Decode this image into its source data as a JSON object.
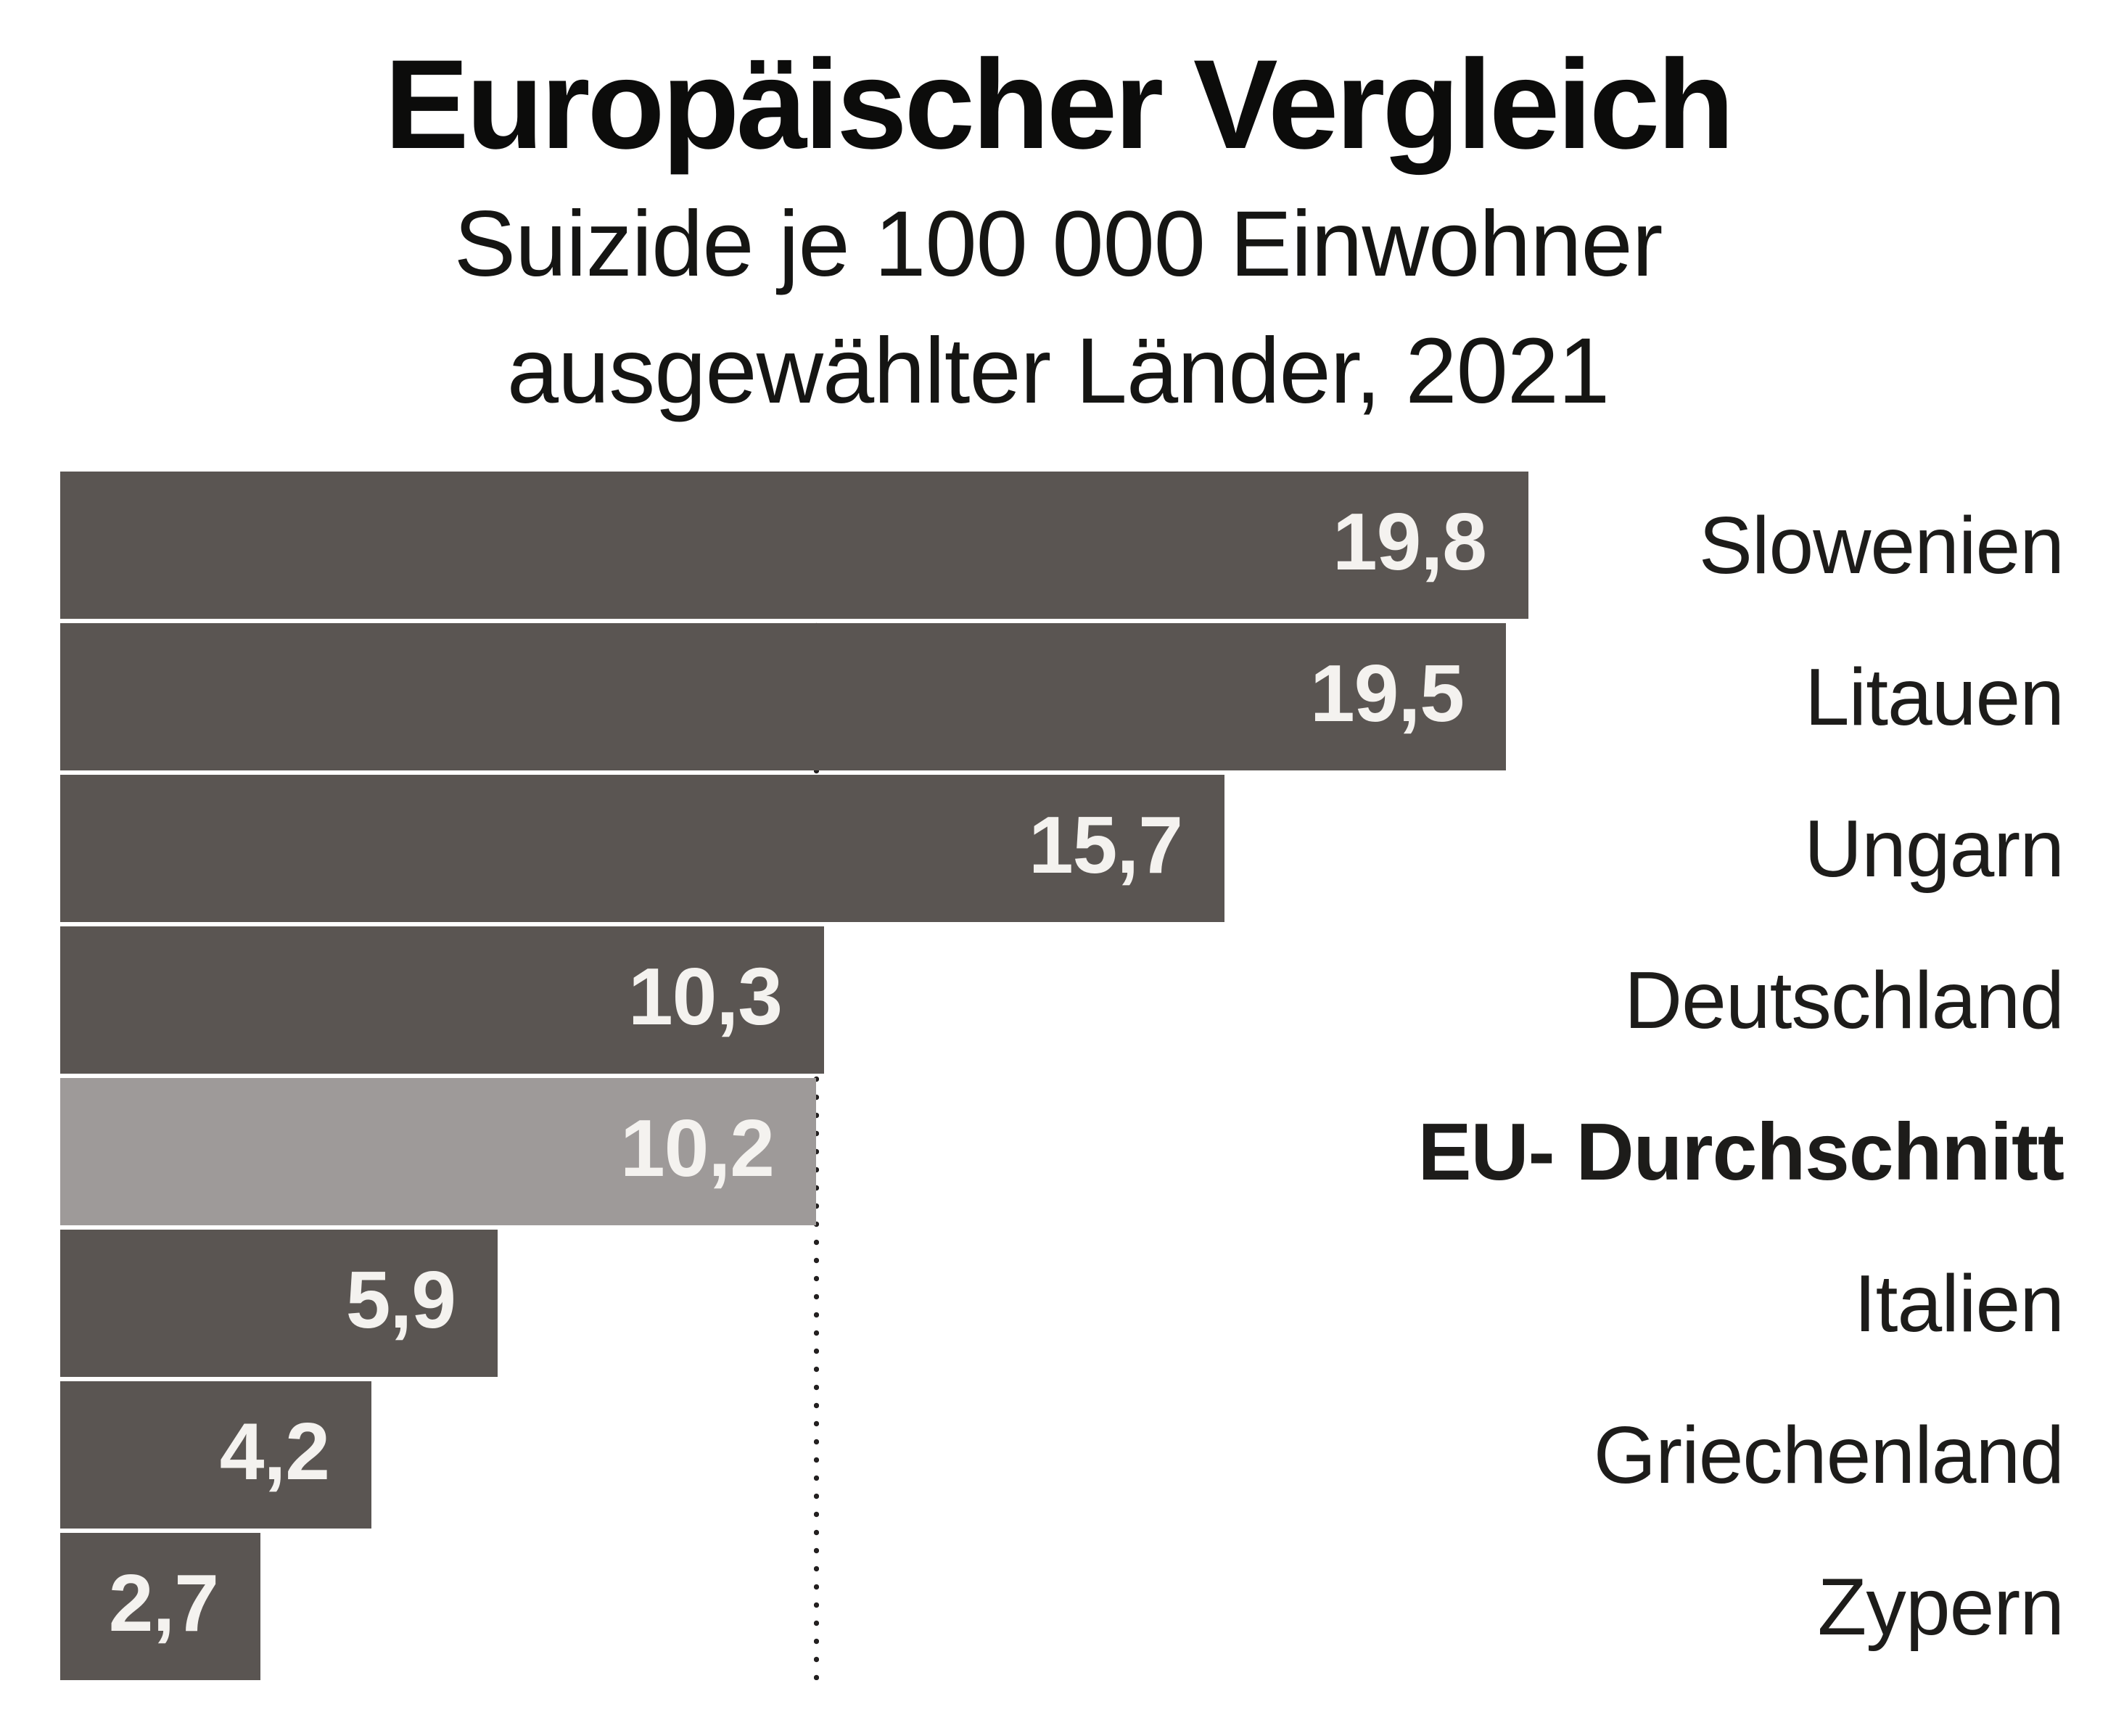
{
  "header": {
    "title": "Europäischer Vergleich",
    "subtitle_line1": "Suizide je 100 000 Einwohner",
    "subtitle_line2": "ausgewählter Länder, 2021"
  },
  "chart_data": {
    "type": "bar",
    "orientation": "horizontal",
    "title": "Europäischer Vergleich",
    "subtitle": "Suizide je 100 000 Einwohner ausgewählter Länder, 2021",
    "unit": "Suizide je 100 000 Einwohner",
    "year": "2021",
    "categories": [
      "Slowenien",
      "Litauen",
      "Ungarn",
      "Deutschland",
      "EU- Durchschnitt",
      "Italien",
      "Griechenland",
      "Zypern"
    ],
    "values": [
      19.8,
      19.5,
      15.7,
      10.3,
      10.2,
      5.9,
      4.2,
      2.7
    ],
    "value_labels": [
      "19,8",
      "19,5",
      "15,7",
      "10,3",
      "10,2",
      "5,9",
      "4,2",
      "2,7"
    ],
    "highlight_index": 4,
    "reference_line": {
      "value": 10.2,
      "style": "dotted"
    },
    "xlim": [
      0,
      19.8
    ],
    "grid": "off",
    "legend": "none",
    "colors": {
      "bar": "#5a5552",
      "highlight_bar": "#9e9a99",
      "value_text": "#f4f2ef",
      "label_text": "#1d1c1a",
      "title_text": "#0c0c0b",
      "reference_dots": "#232020",
      "background": "#ffffff"
    }
  }
}
